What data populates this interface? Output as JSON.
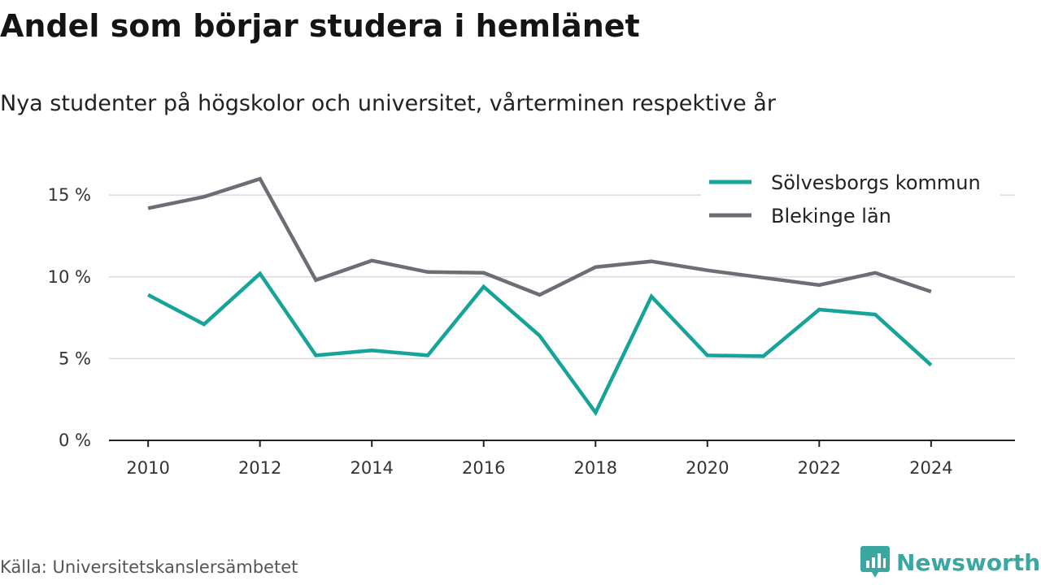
{
  "title": "Andel som börjar studera i hemlänet",
  "subtitle": "Nya studenter på högskolor och universitet, vårterminen respektive år",
  "source": "Källa: Universitetskanslersämbetet",
  "brand": {
    "name": "Newsworthy",
    "icon": "newsworthy-logo-icon",
    "color": "#3aa7a0"
  },
  "chart_data": {
    "type": "line",
    "x": [
      2010,
      2011,
      2012,
      2013,
      2014,
      2015,
      2016,
      2017,
      2018,
      2019,
      2020,
      2021,
      2022,
      2023,
      2024
    ],
    "series": [
      {
        "name": "Sölvesborgs kommun",
        "color": "#15a39a",
        "values": [
          8.9,
          7.1,
          10.2,
          5.2,
          5.5,
          5.2,
          9.4,
          6.4,
          1.7,
          8.8,
          5.2,
          5.15,
          8.0,
          7.7,
          4.6
        ]
      },
      {
        "name": "Blekinge län",
        "color": "#6e6d75",
        "values": [
          14.2,
          14.9,
          16.0,
          9.8,
          11.0,
          10.3,
          10.25,
          8.9,
          10.6,
          10.95,
          10.4,
          9.95,
          9.5,
          10.25,
          9.1
        ]
      }
    ],
    "y_ticks": [
      "0 %",
      "5 %",
      "10 %",
      "15 %"
    ],
    "y_tick_values": [
      0,
      5,
      10,
      15
    ],
    "x_ticks": [
      "2010",
      "2012",
      "2014",
      "2016",
      "2018",
      "2020",
      "2022",
      "2024"
    ],
    "ylim": [
      0,
      16.5
    ],
    "xlim": [
      2009.3,
      2025.5
    ],
    "grid": true,
    "legend_position": "top-right",
    "xlabel": "",
    "ylabel": ""
  }
}
